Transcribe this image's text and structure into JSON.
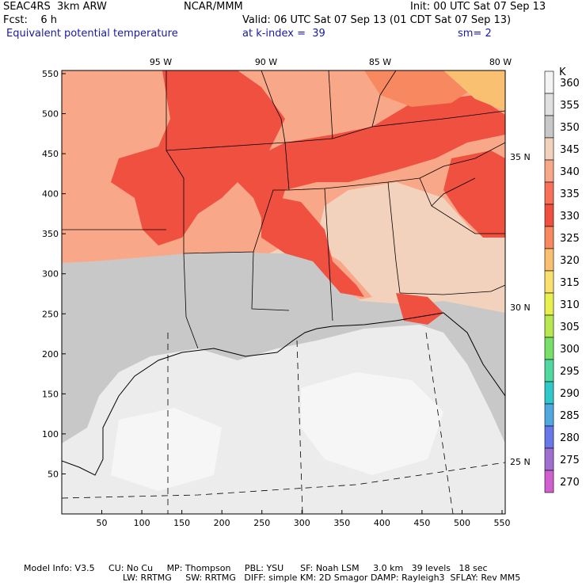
{
  "header": {
    "model": "SEAC4RS  3km ARW",
    "org": "NCAR/MMM",
    "init": "Init: 00 UTC Sat 07 Sep 13",
    "fcst": "Fcst:    6 h",
    "valid": "Valid: 06 UTC Sat 07 Sep 13 (01 CDT Sat 07 Sep 13)",
    "field": "Equivalent potential temperature",
    "level": "at k-index =  39",
    "smoothing": "sm= 2"
  },
  "map": {
    "lon_labels": [
      "95 W",
      "90 W",
      "85 W",
      "80 W"
    ],
    "lat_labels": [
      "35 N",
      "30 N",
      "25 N"
    ],
    "x_ticks": [
      "50",
      "100",
      "150",
      "200",
      "250",
      "300",
      "350",
      "400",
      "450",
      "500",
      "550"
    ],
    "y_ticks": [
      "550",
      "500",
      "450",
      "400",
      "350",
      "300",
      "250",
      "200",
      "150",
      "100",
      "50"
    ]
  },
  "colorbar": {
    "unit": "K",
    "levels": [
      "360",
      "355",
      "350",
      "345",
      "340",
      "335",
      "330",
      "325",
      "320",
      "315",
      "310",
      "305",
      "300",
      "295",
      "290",
      "285",
      "280",
      "275",
      "270"
    ],
    "colors": [
      "#f4f4f4",
      "#e0e0e0",
      "#c8c8c8",
      "#f2d2bc",
      "#f8a888",
      "#f87058",
      "#f05040",
      "#f88860",
      "#f8c070",
      "#f8e070",
      "#e8f050",
      "#b8e850",
      "#78e068",
      "#50d8a0",
      "#30c8c8",
      "#50a8e0",
      "#6878e8",
      "#a070d0",
      "#d060d0"
    ]
  },
  "colors": {
    "background_gray": "#c8c8c8",
    "gulf_light": "#ececec",
    "land_warm": "#f8a888",
    "land_hot": "#f05040",
    "tan": "#f2d2bc",
    "orange": "#f8c070"
  },
  "footer": {
    "line1": "Model Info: V3.5     CU: No Cu     MP: Thompson     PBL: YSU      SF: Noah LSM     3.0 km   39 levels   18 sec",
    "line2": "LW: RRTMG     SW: RRTMG   DIFF: simple KM: 2D Smagor DAMP: Rayleigh3  SFLAY: Rev MM5"
  }
}
